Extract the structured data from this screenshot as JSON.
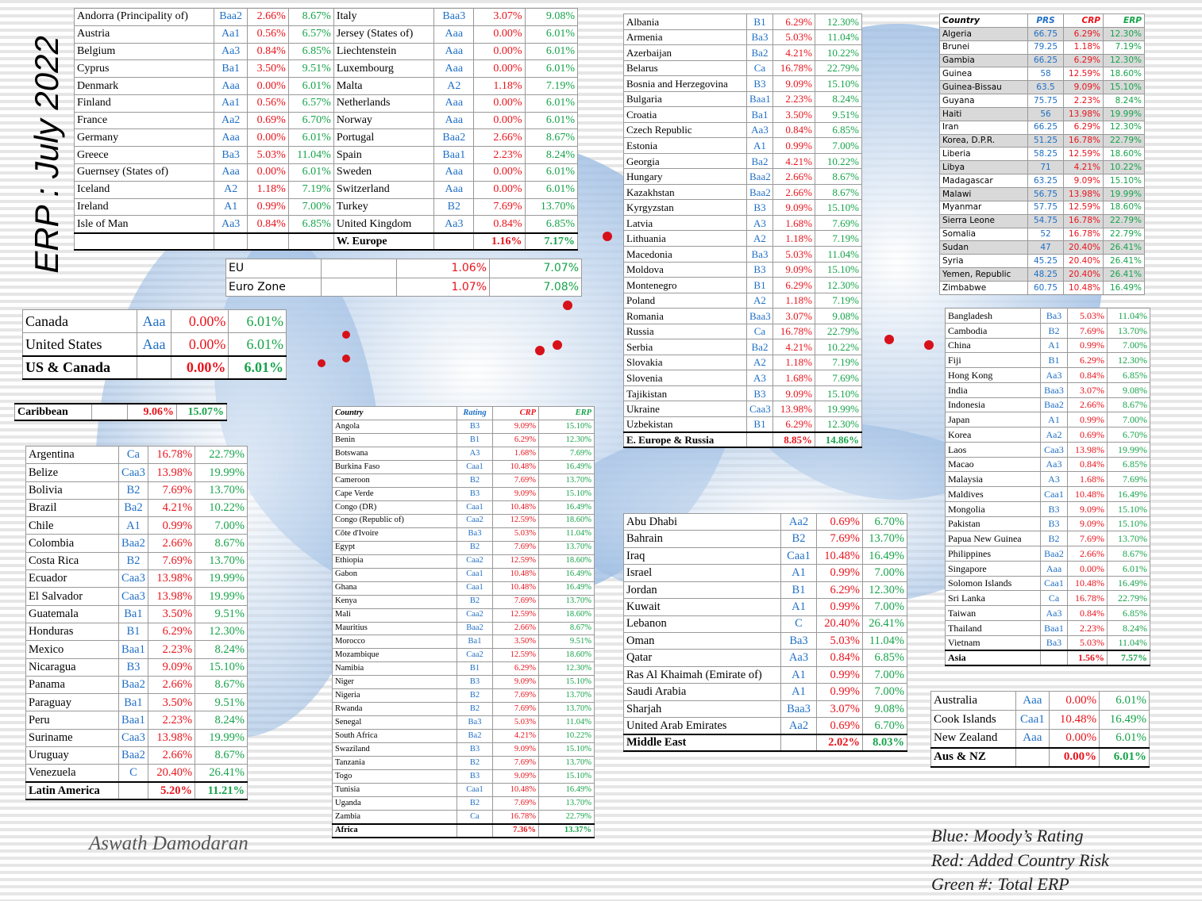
{
  "title": "ERP : July 2022",
  "author": "Aswath Damodaran",
  "legend": [
    "Blue: Moody’s Rating",
    "Red: Added Country Risk",
    "Green #: Total ERP"
  ],
  "tables": {
    "weurope": {
      "rows": [
        [
          "Andorra (Principality of)",
          "Baa2",
          "2.66%",
          "8.67%"
        ],
        [
          "Austria",
          "Aa1",
          "0.56%",
          "6.57%"
        ],
        [
          "Belgium",
          "Aa3",
          "0.84%",
          "6.85%"
        ],
        [
          "Cyprus",
          "Ba1",
          "3.50%",
          "9.51%"
        ],
        [
          "Denmark",
          "Aaa",
          "0.00%",
          "6.01%"
        ],
        [
          "Finland",
          "Aa1",
          "0.56%",
          "6.57%"
        ],
        [
          "France",
          "Aa2",
          "0.69%",
          "6.70%"
        ],
        [
          "Germany",
          "Aaa",
          "0.00%",
          "6.01%"
        ],
        [
          "Greece",
          "Ba3",
          "5.03%",
          "11.04%"
        ],
        [
          "Guernsey (States of)",
          "Aaa",
          "0.00%",
          "6.01%"
        ],
        [
          "Iceland",
          "A2",
          "1.18%",
          "7.19%"
        ],
        [
          "Ireland",
          "A1",
          "0.99%",
          "7.00%"
        ],
        [
          "Isle of Man",
          "Aa3",
          "0.84%",
          "6.85%"
        ]
      ],
      "rows_right": [
        [
          "Italy",
          "Baa3",
          "3.07%",
          "9.08%"
        ],
        [
          "Jersey (States of)",
          "Aaa",
          "0.00%",
          "6.01%"
        ],
        [
          "Liechtenstein",
          "Aaa",
          "0.00%",
          "6.01%"
        ],
        [
          "Luxembourg",
          "Aaa",
          "0.00%",
          "6.01%"
        ],
        [
          "Malta",
          "A2",
          "1.18%",
          "7.19%"
        ],
        [
          "Netherlands",
          "Aaa",
          "0.00%",
          "6.01%"
        ],
        [
          "Norway",
          "Aaa",
          "0.00%",
          "6.01%"
        ],
        [
          "Portugal",
          "Baa2",
          "2.66%",
          "8.67%"
        ],
        [
          "Spain",
          "Baa1",
          "2.23%",
          "8.24%"
        ],
        [
          "Sweden",
          "Aaa",
          "0.00%",
          "6.01%"
        ],
        [
          "Switzerland",
          "Aaa",
          "0.00%",
          "6.01%"
        ],
        [
          "Turkey",
          "B2",
          "7.69%",
          "13.70%"
        ],
        [
          "United Kingdom",
          "Aa3",
          "0.84%",
          "6.85%"
        ]
      ],
      "total": [
        "W. Europe",
        "1.16%",
        "7.17%"
      ]
    },
    "eu": {
      "rows": [
        [
          "EU",
          "1.06%",
          "7.07%"
        ],
        [
          "Euro Zone",
          "1.07%",
          "7.08%"
        ]
      ]
    },
    "usca": {
      "rows": [
        [
          "Canada",
          "Aaa",
          "0.00%",
          "6.01%"
        ],
        [
          "United States",
          "Aaa",
          "0.00%",
          "6.01%"
        ]
      ],
      "total": [
        "US & Canada",
        "0.00%",
        "6.01%"
      ]
    },
    "caribbean": {
      "total": [
        "Caribbean",
        "9.06%",
        "15.07%"
      ]
    },
    "latam": {
      "rows": [
        [
          "Argentina",
          "Ca",
          "16.78%",
          "22.79%"
        ],
        [
          "Belize",
          "Caa3",
          "13.98%",
          "19.99%"
        ],
        [
          "Bolivia",
          "B2",
          "7.69%",
          "13.70%"
        ],
        [
          "Brazil",
          "Ba2",
          "4.21%",
          "10.22%"
        ],
        [
          "Chile",
          "A1",
          "0.99%",
          "7.00%"
        ],
        [
          "Colombia",
          "Baa2",
          "2.66%",
          "8.67%"
        ],
        [
          "Costa Rica",
          "B2",
          "7.69%",
          "13.70%"
        ],
        [
          "Ecuador",
          "Caa3",
          "13.98%",
          "19.99%"
        ],
        [
          "El Salvador",
          "Caa3",
          "13.98%",
          "19.99%"
        ],
        [
          "Guatemala",
          "Ba1",
          "3.50%",
          "9.51%"
        ],
        [
          "Honduras",
          "B1",
          "6.29%",
          "12.30%"
        ],
        [
          "Mexico",
          "Baa1",
          "2.23%",
          "8.24%"
        ],
        [
          "Nicaragua",
          "B3",
          "9.09%",
          "15.10%"
        ],
        [
          "Panama",
          "Baa2",
          "2.66%",
          "8.67%"
        ],
        [
          "Paraguay",
          "Ba1",
          "3.50%",
          "9.51%"
        ],
        [
          "Peru",
          "Baa1",
          "2.23%",
          "8.24%"
        ],
        [
          "Suriname",
          "Caa3",
          "13.98%",
          "19.99%"
        ],
        [
          "Uruguay",
          "Baa2",
          "2.66%",
          "8.67%"
        ],
        [
          "Venezuela",
          "C",
          "20.40%",
          "26.41%"
        ]
      ],
      "total": [
        "Latin America",
        "5.20%",
        "11.21%"
      ]
    },
    "africa": {
      "header": [
        "Country",
        "Rating",
        "CRP",
        "ERP"
      ],
      "rows": [
        [
          "Angola",
          "B3",
          "9.09%",
          "15.10%"
        ],
        [
          "Benin",
          "B1",
          "6.29%",
          "12.30%"
        ],
        [
          "Botswana",
          "A3",
          "1.68%",
          "7.69%"
        ],
        [
          "Burkina Faso",
          "Caa1",
          "10.48%",
          "16.49%"
        ],
        [
          "Cameroon",
          "B2",
          "7.69%",
          "13.70%"
        ],
        [
          "Cape Verde",
          "B3",
          "9.09%",
          "15.10%"
        ],
        [
          "Congo (DR)",
          "Caa1",
          "10.48%",
          "16.49%"
        ],
        [
          "Congo (Republic of)",
          "Caa2",
          "12.59%",
          "18.60%"
        ],
        [
          "Côte d'Ivoire",
          "Ba3",
          "5.03%",
          "11.04%"
        ],
        [
          "Egypt",
          "B2",
          "7.69%",
          "13.70%"
        ],
        [
          "Ethiopia",
          "Caa2",
          "12.59%",
          "18.60%"
        ],
        [
          "Gabon",
          "Caa1",
          "10.48%",
          "16.49%"
        ],
        [
          "Ghana",
          "Caa1",
          "10.48%",
          "16.49%"
        ],
        [
          "Kenya",
          "B2",
          "7.69%",
          "13.70%"
        ],
        [
          "Mali",
          "Caa2",
          "12.59%",
          "18.60%"
        ],
        [
          "Mauritius",
          "Baa2",
          "2.66%",
          "8.67%"
        ],
        [
          "Morocco",
          "Ba1",
          "3.50%",
          "9.51%"
        ],
        [
          "Mozambique",
          "Caa2",
          "12.59%",
          "18.60%"
        ],
        [
          "Namibia",
          "B1",
          "6.29%",
          "12.30%"
        ],
        [
          "Niger",
          "B3",
          "9.09%",
          "15.10%"
        ],
        [
          "Nigeria",
          "B2",
          "7.69%",
          "13.70%"
        ],
        [
          "Rwanda",
          "B2",
          "7.69%",
          "13.70%"
        ],
        [
          "Senegal",
          "Ba3",
          "5.03%",
          "11.04%"
        ],
        [
          "South Africa",
          "Ba2",
          "4.21%",
          "10.22%"
        ],
        [
          "Swaziland",
          "B3",
          "9.09%",
          "15.10%"
        ],
        [
          "Tanzania",
          "B2",
          "7.69%",
          "13.70%"
        ],
        [
          "Togo",
          "B3",
          "9.09%",
          "15.10%"
        ],
        [
          "Tunisia",
          "Caa1",
          "10.48%",
          "16.49%"
        ],
        [
          "Uganda",
          "B2",
          "7.69%",
          "13.70%"
        ],
        [
          "Zambia",
          "Ca",
          "16.78%",
          "22.79%"
        ]
      ],
      "total": [
        "Africa",
        "7.36%",
        "13.37%"
      ]
    },
    "eeurope": {
      "rows": [
        [
          "Albania",
          "B1",
          "6.29%",
          "12.30%"
        ],
        [
          "Armenia",
          "Ba3",
          "5.03%",
          "11.04%"
        ],
        [
          "Azerbaijan",
          "Ba2",
          "4.21%",
          "10.22%"
        ],
        [
          "Belarus",
          "Ca",
          "16.78%",
          "22.79%"
        ],
        [
          "Bosnia and Herzegovina",
          "B3",
          "9.09%",
          "15.10%"
        ],
        [
          "Bulgaria",
          "Baa1",
          "2.23%",
          "8.24%"
        ],
        [
          "Croatia",
          "Ba1",
          "3.50%",
          "9.51%"
        ],
        [
          "Czech Republic",
          "Aa3",
          "0.84%",
          "6.85%"
        ],
        [
          "Estonia",
          "A1",
          "0.99%",
          "7.00%"
        ],
        [
          "Georgia",
          "Ba2",
          "4.21%",
          "10.22%"
        ],
        [
          "Hungary",
          "Baa2",
          "2.66%",
          "8.67%"
        ],
        [
          "Kazakhstan",
          "Baa2",
          "2.66%",
          "8.67%"
        ],
        [
          "Kyrgyzstan",
          "B3",
          "9.09%",
          "15.10%"
        ],
        [
          "Latvia",
          "A3",
          "1.68%",
          "7.69%"
        ],
        [
          "Lithuania",
          "A2",
          "1.18%",
          "7.19%"
        ],
        [
          "Macedonia",
          "Ba3",
          "5.03%",
          "11.04%"
        ],
        [
          "Moldova",
          "B3",
          "9.09%",
          "15.10%"
        ],
        [
          "Montenegro",
          "B1",
          "6.29%",
          "12.30%"
        ],
        [
          "Poland",
          "A2",
          "1.18%",
          "7.19%"
        ],
        [
          "Romania",
          "Baa3",
          "3.07%",
          "9.08%"
        ],
        [
          "Russia",
          "Ca",
          "16.78%",
          "22.79%"
        ],
        [
          "Serbia",
          "Ba2",
          "4.21%",
          "10.22%"
        ],
        [
          "Slovakia",
          "A2",
          "1.18%",
          "7.19%"
        ],
        [
          "Slovenia",
          "A3",
          "1.68%",
          "7.69%"
        ],
        [
          "Tajikistan",
          "B3",
          "9.09%",
          "15.10%"
        ],
        [
          "Ukraine",
          "Caa3",
          "13.98%",
          "19.99%"
        ],
        [
          "Uzbekistan",
          "B1",
          "6.29%",
          "12.30%"
        ]
      ],
      "total": [
        "E. Europe & Russia",
        "8.85%",
        "14.86%"
      ]
    },
    "mideast": {
      "rows": [
        [
          "Abu Dhabi",
          "Aa2",
          "0.69%",
          "6.70%"
        ],
        [
          "Bahrain",
          "B2",
          "7.69%",
          "13.70%"
        ],
        [
          "Iraq",
          "Caa1",
          "10.48%",
          "16.49%"
        ],
        [
          "Israel",
          "A1",
          "0.99%",
          "7.00%"
        ],
        [
          "Jordan",
          "B1",
          "6.29%",
          "12.30%"
        ],
        [
          "Kuwait",
          "A1",
          "0.99%",
          "7.00%"
        ],
        [
          "Lebanon",
          "C",
          "20.40%",
          "26.41%"
        ],
        [
          "Oman",
          "Ba3",
          "5.03%",
          "11.04%"
        ],
        [
          "Qatar",
          "Aa3",
          "0.84%",
          "6.85%"
        ],
        [
          "Ras Al Khaimah (Emirate of)",
          "A1",
          "0.99%",
          "7.00%"
        ],
        [
          "Saudi Arabia",
          "A1",
          "0.99%",
          "7.00%"
        ],
        [
          "Sharjah",
          "Baa3",
          "3.07%",
          "9.08%"
        ],
        [
          "United Arab Emirates",
          "Aa2",
          "0.69%",
          "6.70%"
        ]
      ],
      "total": [
        "Middle East",
        "2.02%",
        "8.03%"
      ]
    },
    "prs": {
      "header": [
        "Country",
        "PRS",
        "CRP",
        "ERP"
      ],
      "rows": [
        [
          "Algeria",
          "66.75",
          "6.29%",
          "12.30%"
        ],
        [
          "Brunei",
          "79.25",
          "1.18%",
          "7.19%"
        ],
        [
          "Gambia",
          "66.25",
          "6.29%",
          "12.30%"
        ],
        [
          "Guinea",
          "58",
          "12.59%",
          "18.60%"
        ],
        [
          "Guinea-Bissau",
          "63.5",
          "9.09%",
          "15.10%"
        ],
        [
          "Guyana",
          "75.75",
          "2.23%",
          "8.24%"
        ],
        [
          "Haiti",
          "56",
          "13.98%",
          "19.99%"
        ],
        [
          "Iran",
          "66.25",
          "6.29%",
          "12.30%"
        ],
        [
          "Korea, D.P.R.",
          "51.25",
          "16.78%",
          "22.79%"
        ],
        [
          "Liberia",
          "58.25",
          "12.59%",
          "18.60%"
        ],
        [
          "Libya",
          "71",
          "4.21%",
          "10.22%"
        ],
        [
          "Madagascar",
          "63.25",
          "9.09%",
          "15.10%"
        ],
        [
          "Malawi",
          "56.75",
          "13.98%",
          "19.99%"
        ],
        [
          "Myanmar",
          "57.75",
          "12.59%",
          "18.60%"
        ],
        [
          "Sierra Leone",
          "54.75",
          "16.78%",
          "22.79%"
        ],
        [
          "Somalia",
          "52",
          "16.78%",
          "22.79%"
        ],
        [
          "Sudan",
          "47",
          "20.40%",
          "26.41%"
        ],
        [
          "Syria",
          "45.25",
          "20.40%",
          "26.41%"
        ],
        [
          "Yemen, Republic",
          "48.25",
          "20.40%",
          "26.41%"
        ],
        [
          "Zimbabwe",
          "60.75",
          "10.48%",
          "16.49%"
        ]
      ]
    },
    "asia": {
      "rows": [
        [
          "Bangladesh",
          "Ba3",
          "5.03%",
          "11.04%"
        ],
        [
          "Cambodia",
          "B2",
          "7.69%",
          "13.70%"
        ],
        [
          "China",
          "A1",
          "0.99%",
          "7.00%"
        ],
        [
          "Fiji",
          "B1",
          "6.29%",
          "12.30%"
        ],
        [
          "Hong Kong",
          "Aa3",
          "0.84%",
          "6.85%"
        ],
        [
          "India",
          "Baa3",
          "3.07%",
          "9.08%"
        ],
        [
          "Indonesia",
          "Baa2",
          "2.66%",
          "8.67%"
        ],
        [
          "Japan",
          "A1",
          "0.99%",
          "7.00%"
        ],
        [
          "Korea",
          "Aa2",
          "0.69%",
          "6.70%"
        ],
        [
          "Laos",
          "Caa3",
          "13.98%",
          "19.99%"
        ],
        [
          "Macao",
          "Aa3",
          "0.84%",
          "6.85%"
        ],
        [
          "Malaysia",
          "A3",
          "1.68%",
          "7.69%"
        ],
        [
          "Maldives",
          "Caa1",
          "10.48%",
          "16.49%"
        ],
        [
          "Mongolia",
          "B3",
          "9.09%",
          "15.10%"
        ],
        [
          "Pakistan",
          "B3",
          "9.09%",
          "15.10%"
        ],
        [
          "Papua New Guinea",
          "B2",
          "7.69%",
          "13.70%"
        ],
        [
          "Philippines",
          "Baa2",
          "2.66%",
          "8.67%"
        ],
        [
          "Singapore",
          "Aaa",
          "0.00%",
          "6.01%"
        ],
        [
          "Solomon Islands",
          "Caa1",
          "10.48%",
          "16.49%"
        ],
        [
          "Sri Lanka",
          "Ca",
          "16.78%",
          "22.79%"
        ],
        [
          "Taiwan",
          "Aa3",
          "0.84%",
          "6.85%"
        ],
        [
          "Thailand",
          "Baa1",
          "2.23%",
          "8.24%"
        ],
        [
          "Vietnam",
          "Ba3",
          "5.03%",
          "11.04%"
        ]
      ],
      "total": [
        "Asia",
        "1.56%",
        "7.57%"
      ]
    },
    "ausnz": {
      "rows": [
        [
          "Australia",
          "Aaa",
          "0.00%",
          "6.01%"
        ],
        [
          "Cook Islands",
          "Caa1",
          "10.48%",
          "16.49%"
        ],
        [
          "New Zealand",
          "Aaa",
          "0.00%",
          "6.01%"
        ]
      ],
      "total": [
        "Aus & NZ",
        "0.00%",
        "6.01%"
      ]
    }
  }
}
